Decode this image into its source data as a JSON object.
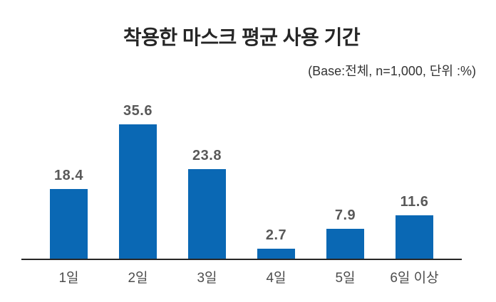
{
  "chart": {
    "title": "착용한 마스크 평균 사용 기간",
    "subtitle": "(Base:전체, n=1,000, 단위 :%)"
  },
  "chart_data": {
    "type": "bar",
    "title": "착용한 마스크 평균 사용 기간",
    "subtitle": "(Base:전체, n=1,000, 단위 :%)",
    "categories": [
      "1일",
      "2일",
      "3일",
      "4일",
      "5일",
      "6일 이상"
    ],
    "values": [
      18.4,
      35.6,
      23.8,
      2.7,
      7.9,
      11.6
    ],
    "xlabel": "",
    "ylabel": "",
    "ylim": [
      0,
      40
    ],
    "grid": false,
    "legend": "none",
    "value_labels": true,
    "colors": {
      "bar": "#0a68b4",
      "value_label": "#595959",
      "axis_label": "#4d4d4d",
      "axis_line": "#262626",
      "title": "#262626",
      "subtitle": "#333333",
      "background": "#ffffff"
    }
  }
}
